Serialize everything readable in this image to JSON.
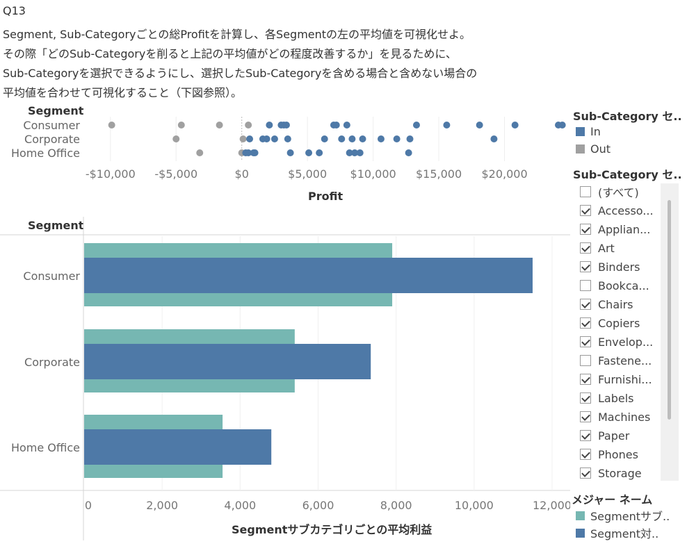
{
  "question": {
    "line1": "Q13",
    "line2": "Segment, Sub-Categoryごとの総Profitを計算し、各Segmentの左の平均値を可視化せよ。",
    "line3": "その際「どのSub-Categoryを削ると上記の平均値がどの程度改善するか」を見るために、",
    "line4": "Sub-Categoryを選択できるようにし、選択したSub-Categoryを含める場合と含めない場合の",
    "line5": "平均値を合わせて可視化すること（下図参照）。"
  },
  "colors": {
    "in": "#4e79a7",
    "out": "#a0a0a0",
    "teal": "#76b7b2",
    "blue": "#4e79a7"
  },
  "chart_data": [
    {
      "type": "scatter",
      "row_header": "Segment",
      "xlabel": "Profit",
      "xlim": [
        -12000,
        25000
      ],
      "x_ticks": [
        -10000,
        -5000,
        0,
        5000,
        10000,
        15000,
        20000
      ],
      "x_tick_labels": [
        "-$10,000",
        "-$5,000",
        "$0",
        "$5,000",
        "$10,000",
        "$15,000",
        "$20,000"
      ],
      "series": [
        {
          "name": "In",
          "points": [
            {
              "segment": "Consumer",
              "x": 2100
            },
            {
              "segment": "Consumer",
              "x": 3000
            },
            {
              "segment": "Consumer",
              "x": 3200
            },
            {
              "segment": "Consumer",
              "x": 3400
            },
            {
              "segment": "Consumer",
              "x": 7000
            },
            {
              "segment": "Consumer",
              "x": 7200
            },
            {
              "segment": "Consumer",
              "x": 8000
            },
            {
              "segment": "Consumer",
              "x": 13300
            },
            {
              "segment": "Consumer",
              "x": 15600
            },
            {
              "segment": "Consumer",
              "x": 18100
            },
            {
              "segment": "Consumer",
              "x": 20800
            },
            {
              "segment": "Consumer",
              "x": 24100
            },
            {
              "segment": "Consumer",
              "x": 24400
            },
            {
              "segment": "Corporate",
              "x": 600
            },
            {
              "segment": "Corporate",
              "x": 1600
            },
            {
              "segment": "Corporate",
              "x": 1900
            },
            {
              "segment": "Corporate",
              "x": 2500
            },
            {
              "segment": "Corporate",
              "x": 3500
            },
            {
              "segment": "Corporate",
              "x": 6300
            },
            {
              "segment": "Corporate",
              "x": 7600
            },
            {
              "segment": "Corporate",
              "x": 8400
            },
            {
              "segment": "Corporate",
              "x": 9200
            },
            {
              "segment": "Corporate",
              "x": 10600
            },
            {
              "segment": "Corporate",
              "x": 11800
            },
            {
              "segment": "Corporate",
              "x": 12800
            },
            {
              "segment": "Corporate",
              "x": 19200
            },
            {
              "segment": "Home Office",
              "x": 300
            },
            {
              "segment": "Home Office",
              "x": 500
            },
            {
              "segment": "Home Office",
              "x": 900
            },
            {
              "segment": "Home Office",
              "x": 1000
            },
            {
              "segment": "Home Office",
              "x": 3700
            },
            {
              "segment": "Home Office",
              "x": 5100
            },
            {
              "segment": "Home Office",
              "x": 5900
            },
            {
              "segment": "Home Office",
              "x": 8200
            },
            {
              "segment": "Home Office",
              "x": 8600
            },
            {
              "segment": "Home Office",
              "x": 9000
            },
            {
              "segment": "Home Office",
              "x": 12700
            }
          ]
        },
        {
          "name": "Out",
          "points": [
            {
              "segment": "Consumer",
              "x": -9900
            },
            {
              "segment": "Consumer",
              "x": -4600
            },
            {
              "segment": "Consumer",
              "x": -1700
            },
            {
              "segment": "Consumer",
              "x": 500
            },
            {
              "segment": "Corporate",
              "x": -5000
            },
            {
              "segment": "Corporate",
              "x": 100
            },
            {
              "segment": "Home Office",
              "x": -3200
            },
            {
              "segment": "Home Office",
              "x": 0
            }
          ]
        }
      ]
    },
    {
      "type": "bar",
      "orientation": "horizontal",
      "row_header": "Segment",
      "xlabel": "Segmentサブカテゴリごとの平均利益",
      "xlim": [
        0,
        12000
      ],
      "x_ticks": [
        0,
        2000,
        4000,
        6000,
        8000,
        10000,
        12000
      ],
      "x_tick_labels": [
        "0",
        "2,000",
        "4,000",
        "6,000",
        "8,000",
        "10,000",
        "12,000"
      ],
      "categories": [
        "Consumer",
        "Corporate",
        "Home Office"
      ],
      "series": [
        {
          "name": "Segmentサブ..",
          "values": [
            7900,
            5400,
            3550
          ]
        },
        {
          "name": "Segment対..",
          "values": [
            11500,
            7350,
            4800
          ]
        }
      ]
    }
  ],
  "legend_in_out": {
    "title": "Sub-Category セ..",
    "items": [
      {
        "label": "In",
        "color": "#4e79a7"
      },
      {
        "label": "Out",
        "color": "#a0a0a0"
      }
    ]
  },
  "filter": {
    "title": "Sub-Category セ..",
    "items": [
      {
        "label": "(すべて)",
        "checked": false
      },
      {
        "label": "Accesso...",
        "checked": true
      },
      {
        "label": "Applian...",
        "checked": true
      },
      {
        "label": "Art",
        "checked": true
      },
      {
        "label": "Binders",
        "checked": true
      },
      {
        "label": "Bookca...",
        "checked": false
      },
      {
        "label": "Chairs",
        "checked": true
      },
      {
        "label": "Copiers",
        "checked": true
      },
      {
        "label": "Envelop...",
        "checked": true
      },
      {
        "label": "Fastene...",
        "checked": false
      },
      {
        "label": "Furnishi...",
        "checked": true
      },
      {
        "label": "Labels",
        "checked": true
      },
      {
        "label": "Machines",
        "checked": true
      },
      {
        "label": "Paper",
        "checked": true
      },
      {
        "label": "Phones",
        "checked": true
      },
      {
        "label": "Storage",
        "checked": true
      }
    ]
  },
  "legend_measures": {
    "title": "メジャー ネーム",
    "items": [
      {
        "label": "Segmentサブ..",
        "color": "#76b7b2"
      },
      {
        "label": "Segment対..",
        "color": "#4e79a7"
      }
    ]
  }
}
